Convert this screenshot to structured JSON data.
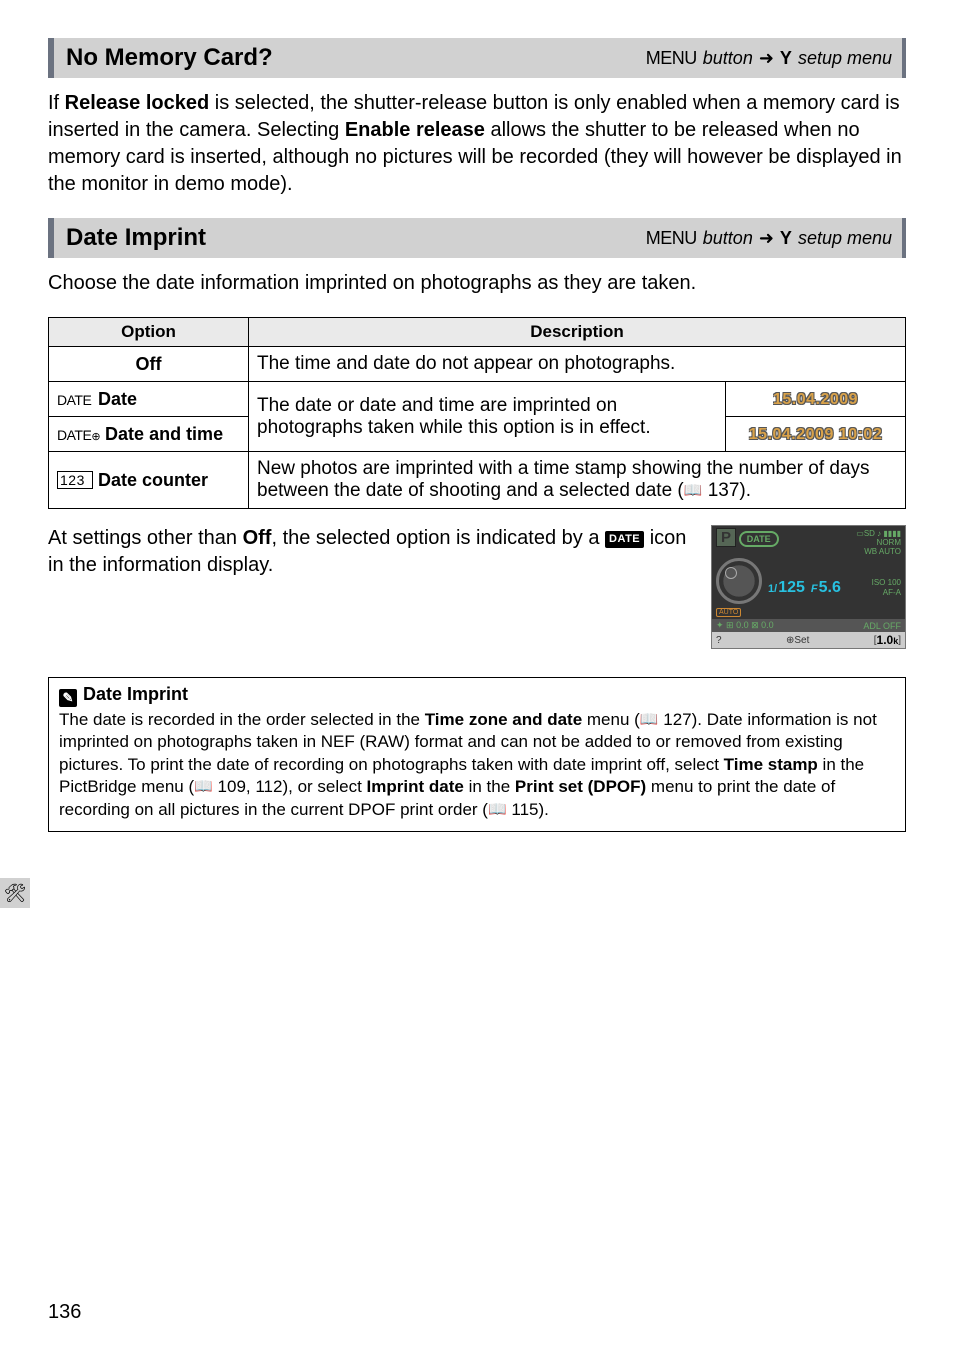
{
  "section1": {
    "title": "No Memory Card?",
    "crumb_menu": "MENU",
    "crumb_button": "button",
    "crumb_arrow": "➜",
    "crumb_tool": "Y",
    "crumb_setup": "setup menu",
    "body_p1_a": "If ",
    "body_p1_b": "Release locked",
    "body_p1_c": " is selected, the shutter-release button is only enabled when a memory card is inserted in the camera.  Selecting ",
    "body_p1_d": "Enable release",
    "body_p1_e": " allows the shutter to be released when no memory card is inserted, although no pictures will be recorded (they will however be displayed in the monitor in demo mode)."
  },
  "section2": {
    "title": "Date Imprint",
    "crumb_menu": "MENU",
    "crumb_button": "button",
    "crumb_arrow": "➜",
    "crumb_tool": "Y",
    "crumb_setup": "setup menu",
    "intro": "Choose the date information imprinted on photographs as they are taken."
  },
  "table": {
    "h_option": "Option",
    "h_desc": "Description",
    "r1_opt": "Off",
    "r1_desc": "The time and date do not appear on photographs.",
    "r2_icon": "DATE",
    "r2_opt": "Date",
    "r23_desc": "The date or date and time are imprinted on photographs taken while this option is in effect.",
    "r2_stamp": "15.04.2009",
    "r3_icon": "DATE",
    "r3_opt": "Date and time",
    "r3_stamp": "15.04.2009 10:02",
    "r4_icon": "123",
    "r4_opt": "Date counter",
    "r4_desc_a": "New photos are imprinted with a time stamp showing the number of days between the date of shooting and a selected date (",
    "r4_desc_b": "137)."
  },
  "after": {
    "text_a": "At settings other than ",
    "text_b": "Off",
    "text_c": ", the selected option is indicated by a ",
    "chip": "DATE",
    "text_d": " icon in the information display."
  },
  "lcd": {
    "p": "P",
    "date": "DATE",
    "sd": "▭SD ♪ ▮▮▮▮",
    "norm": "NORM",
    "auto": "AUTO",
    "wb": "WB",
    "iso": "ISO",
    "iso_v": "100",
    "afa": "AF-A",
    "shutter": "125",
    "shutter_pre": "1/",
    "ap_pre": "F",
    "ap": "5.6",
    "auto2": "AUTO",
    "bar": "✦   ⊞ 0.0 ⊠ 0.0",
    "adl": "ADL OFF",
    "q": "?",
    "set": "⊕Set",
    "count": "1.0",
    "k": "k",
    "brL": "[",
    "brR": "]"
  },
  "note": {
    "title": "Date Imprint",
    "body_a": "The date is recorded in the order selected in the ",
    "body_b": "Time zone and date",
    "body_c": " menu (",
    "body_d": "127).  Date information is not imprinted on photographs taken in NEF (RAW) format and can not be added to or removed from existing pictures.  To print the date of recording on photographs taken with date imprint off, select ",
    "body_e": "Time stamp",
    "body_f": " in the PictBridge menu (",
    "body_g": "109, 112), or select ",
    "body_h": "Imprint date",
    "body_i": " in the ",
    "body_j": "Print set (DPOF)",
    "body_k": " menu to print the date of recording on all pictures in the current DPOF print order (",
    "body_l": "115)."
  },
  "pagenum": "136",
  "book_icon": "📖"
}
